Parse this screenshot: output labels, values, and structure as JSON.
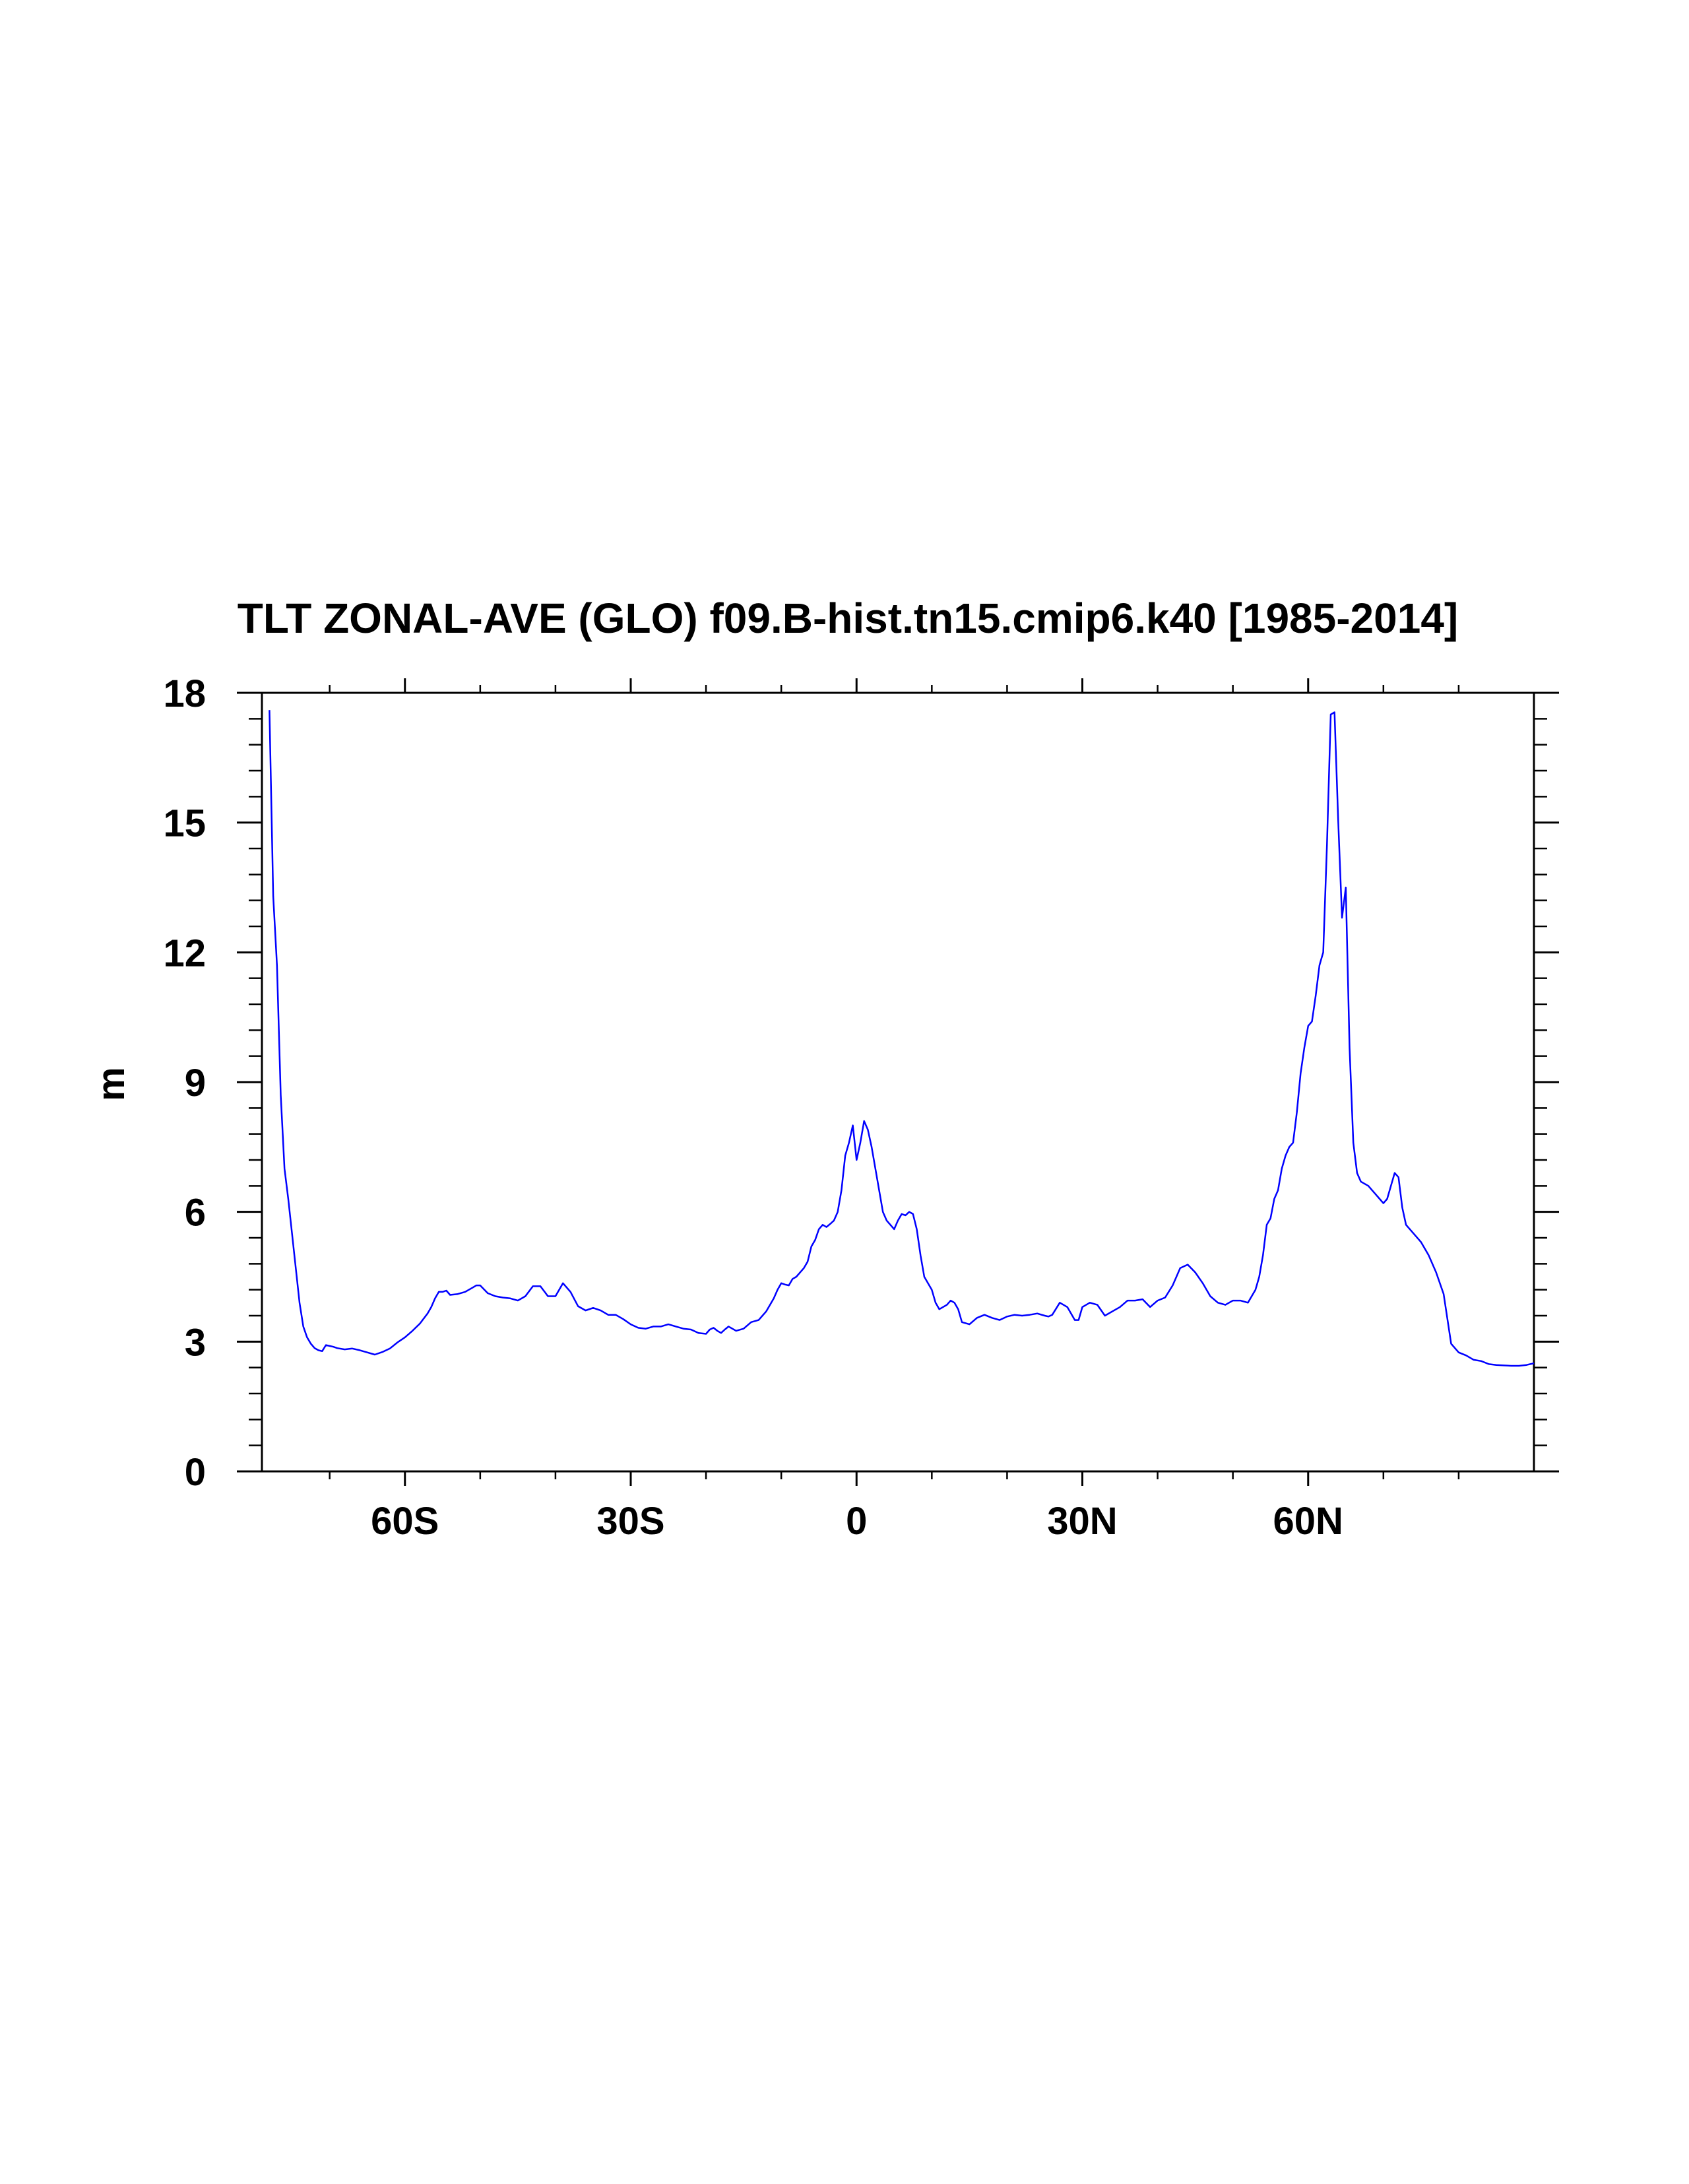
{
  "chart_data": {
    "type": "line",
    "title": "TLT ZONAL-AVE (GLO) f09.B-hist.tn15.cmip6.k40 [1985-2014]",
    "xlabel": "",
    "ylabel": "m",
    "xlim": [
      -79,
      90
    ],
    "ylim": [
      0,
      18
    ],
    "x_ticks": [
      -60,
      -30,
      0,
      30,
      60
    ],
    "x_tick_labels": [
      "60S",
      "30S",
      "0",
      "30N",
      "60N"
    ],
    "x_minor_ticks": [
      -70,
      -50,
      -40,
      -20,
      -10,
      10,
      20,
      40,
      50,
      70,
      80
    ],
    "y_ticks": [
      0,
      3,
      6,
      9,
      12,
      15,
      18
    ],
    "y_tick_labels": [
      "0",
      "3",
      "6",
      "9",
      "12",
      "15",
      "18"
    ],
    "grid": false,
    "line_color": "#0000ff",
    "series": [
      {
        "x": [
          -78,
          -77.5,
          -77,
          -76.5,
          -76,
          -75.5,
          -75,
          -74.5,
          -74,
          -73.5,
          -73,
          -72.5,
          -72,
          -71.5,
          -71,
          -70.5,
          -70,
          -69.5,
          -69,
          -68,
          -67,
          -66,
          -65,
          -64,
          -63,
          -62,
          -61,
          -60,
          -59,
          -58,
          -57,
          -56.5,
          -56,
          -55.5,
          -55,
          -54.5,
          -54,
          -53,
          -52,
          -51,
          -50.5,
          -50,
          -49,
          -48,
          -47,
          -46,
          -45,
          -44,
          -43,
          -42,
          -41,
          -40,
          -39,
          -38,
          -37,
          -36,
          -35,
          -34,
          -33,
          -32,
          -31,
          -30,
          -29,
          -28,
          -27,
          -26,
          -25,
          -24,
          -23,
          -22,
          -21,
          -20,
          -19.5,
          -19,
          -18.5,
          -18,
          -17.5,
          -17,
          -16,
          -15,
          -14,
          -13,
          -12,
          -11,
          -10.5,
          -10,
          -9.5,
          -9,
          -8.5,
          -8,
          -7.5,
          -7,
          -6.5,
          -6,
          -5.5,
          -5,
          -4.5,
          -4,
          -3.5,
          -3,
          -2.5,
          -2,
          -1.5,
          -1,
          -0.5,
          0,
          0.5,
          1,
          1.5,
          2,
          2.5,
          3,
          3.5,
          4,
          5,
          5.5,
          6,
          6.5,
          7,
          7.5,
          8,
          8.5,
          9,
          10,
          10.5,
          11,
          12,
          12.5,
          13,
          13.5,
          14,
          15,
          16,
          17,
          18,
          19,
          20,
          21,
          22,
          23,
          24,
          25,
          25.5,
          26,
          27,
          28,
          29,
          29.5,
          30,
          31,
          32,
          33,
          34,
          35,
          36,
          37,
          38,
          39,
          40,
          41,
          42,
          43,
          44,
          45,
          46,
          47,
          48,
          49,
          50,
          51,
          52,
          53,
          53.5,
          54,
          54.5,
          55,
          55.5,
          56,
          56.5,
          57,
          57.5,
          58,
          58.5,
          59,
          59.5,
          60,
          60.5,
          61,
          61.5,
          62,
          62.5,
          63,
          63.5,
          64,
          64.5,
          65,
          65.5,
          66,
          66.5,
          67,
          68,
          68.5,
          69,
          69.5,
          70,
          70.5,
          71,
          71.5,
          72,
          72.5,
          73,
          74,
          75,
          76,
          77,
          78,
          79,
          80,
          81,
          82,
          83,
          84,
          85,
          86,
          87,
          88,
          89,
          90
        ],
        "y": [
          17.6,
          13.3,
          11.7,
          8.7,
          7.0,
          6.3,
          5.5,
          4.7,
          3.9,
          3.35,
          3.1,
          2.95,
          2.85,
          2.8,
          2.78,
          2.92,
          2.9,
          2.88,
          2.85,
          2.82,
          2.84,
          2.8,
          2.75,
          2.7,
          2.76,
          2.84,
          2.98,
          3.1,
          3.25,
          3.42,
          3.65,
          3.8,
          4.0,
          4.15,
          4.15,
          4.18,
          4.08,
          4.1,
          4.15,
          4.25,
          4.3,
          4.3,
          4.12,
          4.05,
          4.02,
          4.0,
          3.95,
          4.05,
          4.28,
          4.28,
          4.05,
          4.05,
          4.35,
          4.15,
          3.82,
          3.72,
          3.78,
          3.72,
          3.62,
          3.62,
          3.52,
          3.4,
          3.32,
          3.3,
          3.35,
          3.35,
          3.4,
          3.35,
          3.3,
          3.28,
          3.2,
          3.18,
          3.28,
          3.32,
          3.25,
          3.2,
          3.28,
          3.35,
          3.25,
          3.3,
          3.45,
          3.5,
          3.7,
          4.0,
          4.2,
          4.35,
          4.32,
          4.3,
          4.45,
          4.5,
          4.6,
          4.7,
          4.85,
          5.2,
          5.35,
          5.6,
          5.7,
          5.65,
          5.72,
          5.8,
          6.0,
          6.5,
          7.3,
          7.6,
          8.0,
          7.2,
          7.6,
          8.1,
          7.9,
          7.5,
          7.0,
          6.5,
          6.0,
          5.8,
          5.6,
          5.8,
          5.95,
          5.92,
          6.0,
          5.95,
          5.6,
          5.0,
          4.5,
          4.2,
          3.9,
          3.75,
          3.85,
          3.95,
          3.9,
          3.75,
          3.45,
          3.4,
          3.55,
          3.62,
          3.55,
          3.5,
          3.58,
          3.62,
          3.6,
          3.62,
          3.65,
          3.6,
          3.58,
          3.62,
          3.9,
          3.8,
          3.5,
          3.5,
          3.8,
          3.9,
          3.85,
          3.6,
          3.7,
          3.8,
          3.95,
          3.95,
          3.98,
          3.8,
          3.95,
          4.02,
          4.3,
          4.7,
          4.78,
          4.6,
          4.35,
          4.05,
          3.9,
          3.85,
          3.95,
          3.95,
          3.9,
          4.2,
          4.5,
          5.0,
          5.7,
          5.85,
          6.3,
          6.5,
          7.0,
          7.3,
          7.5,
          7.6,
          8.3,
          9.2,
          9.8,
          10.3,
          10.4,
          11.0,
          11.7,
          12.0,
          14.5,
          17.5,
          17.55,
          15.0,
          12.8,
          13.5,
          9.8,
          7.6,
          6.9,
          6.7,
          6.6,
          6.5,
          6.4,
          6.3,
          6.2,
          6.3,
          6.6,
          6.9,
          6.8,
          6.1,
          5.7,
          5.5,
          5.3,
          5.0,
          4.6,
          4.1,
          2.95,
          2.75,
          2.68,
          2.58,
          2.55,
          2.48,
          2.46,
          2.45,
          2.44,
          2.44,
          2.46,
          2.5
        ]
      }
    ]
  }
}
